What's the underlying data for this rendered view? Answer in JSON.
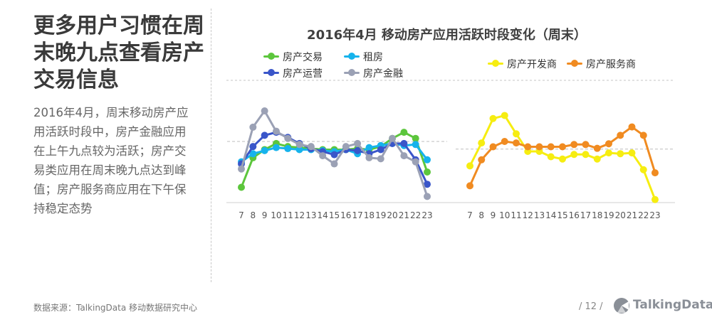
{
  "headline": "更多用户习惯在周末晚九点查看房产交易信息",
  "body_text": "2016年4月，周末移动房产应用活跃时段中，房产金融应用在上午九点较为活跃；房产交易类应用在周末晚九点达到峰值；房产服务商应用在下午保持稳定态势",
  "footer": {
    "source": "数据来源：TalkingData 移动数据研究中心",
    "page": "/  12  /",
    "brand": "TalkingData"
  },
  "chart_data": [
    {
      "type": "line",
      "title": "2016年4月 移动房产应用活跃时段变化（周末）",
      "x": [
        "7",
        "8",
        "9",
        "10",
        "11",
        "12",
        "13",
        "14",
        "15",
        "16",
        "17",
        "18",
        "19",
        "20",
        "21",
        "22",
        "23"
      ],
      "ylabel": "",
      "series": [
        {
          "name": "房产交易",
          "color": "#5cc63c",
          "values": [
            5,
            34,
            42,
            48,
            45,
            44,
            43,
            42,
            42,
            42,
            43,
            42,
            45,
            53,
            59,
            53,
            20
          ]
        },
        {
          "name": "租房",
          "color": "#16b3ec",
          "values": [
            30,
            38,
            41,
            44,
            43,
            42,
            42,
            41,
            40,
            42,
            38,
            44,
            46,
            48,
            46,
            47,
            32
          ]
        },
        {
          "name": "房产运营",
          "color": "#3a56c9",
          "values": [
            28,
            45,
            56,
            59,
            54,
            48,
            43,
            40,
            37,
            42,
            41,
            38,
            42,
            48,
            48,
            32,
            8
          ]
        },
        {
          "name": "房产金融",
          "color": "#9ba1b5",
          "values": [
            23,
            64,
            80,
            60,
            53,
            47,
            45,
            36,
            28,
            45,
            48,
            34,
            33,
            53,
            36,
            30,
            -4
          ]
        }
      ],
      "hline": 50,
      "ylim": [
        -10,
        110
      ]
    },
    {
      "type": "line",
      "title": "",
      "x": [
        "7",
        "8",
        "9",
        "10",
        "11",
        "12",
        "13",
        "14",
        "15",
        "16",
        "17",
        "18",
        "19",
        "20",
        "21",
        "22",
        "23"
      ],
      "ylabel": "",
      "series": [
        {
          "name": "房产开发商",
          "color": "#f6ed11",
          "values": [
            28,
            58,
            90,
            94,
            70,
            47,
            47,
            40,
            37,
            43,
            43,
            37,
            45,
            44,
            45,
            23,
            -16
          ]
        },
        {
          "name": "房产服务商",
          "color": "#f08b21",
          "values": [
            2,
            36,
            53,
            60,
            58,
            53,
            53,
            53,
            53,
            56,
            56,
            51,
            57,
            68,
            79,
            68,
            19
          ]
        }
      ],
      "hline": 50,
      "ylim": [
        -20,
        140
      ]
    }
  ]
}
